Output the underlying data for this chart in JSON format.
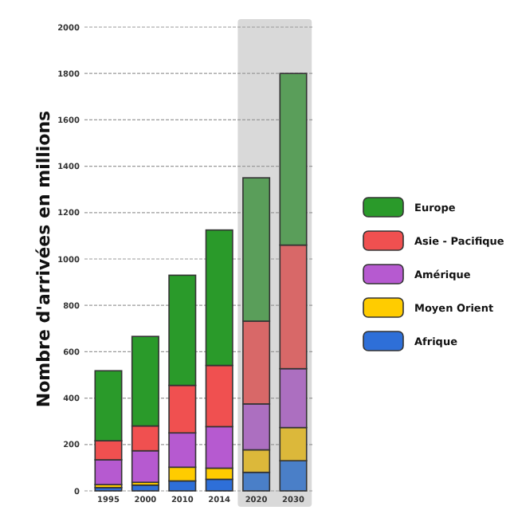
{
  "chart_data": {
    "type": "bar",
    "stacked": true,
    "ylabel": "Nombre d'arrivées en millions",
    "categories": [
      "1995",
      "2000",
      "2010",
      "2014",
      "2020",
      "2030"
    ],
    "series": [
      {
        "name": "Afrique",
        "color": "#2e6fd8",
        "colors": [
          "#2e6fd8",
          "#2e6fd8",
          "#2e6fd8",
          "#2e6fd8",
          "#4a7fc8",
          "#4a7fc8"
        ],
        "values": [
          14,
          25,
          43,
          50,
          80,
          130
        ]
      },
      {
        "name": "Moyen Orient",
        "color": "#ffcc00",
        "colors": [
          "#ffcc00",
          "#ffcc00",
          "#ffcc00",
          "#ffcc00",
          "#dcb83a",
          "#dcb83a"
        ],
        "values": [
          13,
          12,
          59,
          48,
          97,
          143
        ]
      },
      {
        "name": "Amérique",
        "color": "#b65ad0",
        "colors": [
          "#b65ad0",
          "#b65ad0",
          "#b65ad0",
          "#b65ad0",
          "#ac6fc0",
          "#ac6fc0"
        ],
        "values": [
          107,
          136,
          148,
          179,
          198,
          254
        ]
      },
      {
        "name": "Asie - Pacifique",
        "color": "#f05050",
        "colors": [
          "#f05050",
          "#f05050",
          "#f05050",
          "#f05050",
          "#d86868",
          "#d86868"
        ],
        "values": [
          82,
          107,
          205,
          264,
          357,
          533
        ]
      },
      {
        "name": "Europe",
        "color": "#2a9a2a",
        "colors": [
          "#2a9a2a",
          "#2a9a2a",
          "#2a9a2a",
          "#2a9a2a",
          "#5a9e5a",
          "#5a9e5a"
        ],
        "values": [
          302,
          386,
          475,
          584,
          618,
          740
        ]
      }
    ],
    "ylim": [
      0,
      2000
    ],
    "yticks": [
      0,
      200,
      400,
      600,
      800,
      1000,
      1200,
      1400,
      1600,
      1800,
      2000
    ],
    "grid": "y",
    "legend": "right",
    "bands": [
      {
        "axis": "x",
        "from": "2020",
        "to": "2030",
        "color": "#d9d9d9"
      }
    ]
  }
}
